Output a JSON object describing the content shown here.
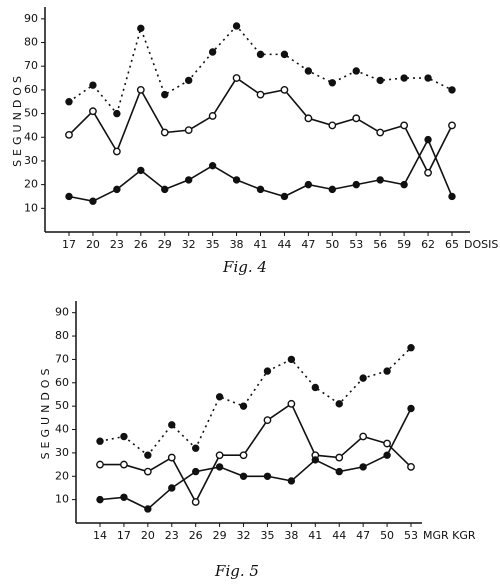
{
  "chart_data": [
    {
      "type": "line",
      "caption": "Fig. 4",
      "y_label": "SEGUNDOS",
      "x_label": "DOSIS",
      "categories": [
        "17",
        "20",
        "23",
        "26",
        "29",
        "32",
        "35",
        "38",
        "41",
        "44",
        "47",
        "50",
        "53",
        "56",
        "59",
        "62",
        "65"
      ],
      "ylim": [
        0,
        95
      ],
      "yticks": [
        10,
        20,
        30,
        40,
        50,
        60,
        70,
        80,
        90
      ],
      "series": [
        {
          "color": "#111111",
          "marker": "filled",
          "linestyle": "dotted",
          "values": [
            55,
            62,
            50,
            86,
            58,
            64,
            76,
            87,
            75,
            75,
            68,
            63,
            68,
            64,
            65,
            65,
            60
          ]
        },
        {
          "color": "#111111",
          "marker": "open",
          "linestyle": "solid",
          "values": [
            41,
            51,
            34,
            60,
            42,
            43,
            49,
            65,
            58,
            60,
            48,
            45,
            48,
            42,
            45,
            25,
            45
          ]
        },
        {
          "color": "#111111",
          "marker": "filled",
          "linestyle": "solid",
          "values": [
            15,
            13,
            18,
            26,
            18,
            22,
            28,
            22,
            18,
            15,
            20,
            18,
            20,
            22,
            20,
            39,
            15
          ]
        }
      ]
    },
    {
      "type": "line",
      "caption": "Fig. 5",
      "y_label": "SEGUNDOS",
      "x_label": "MGR KGR",
      "categories": [
        "14",
        "17",
        "20",
        "23",
        "26",
        "29",
        "32",
        "35",
        "38",
        "41",
        "44",
        "47",
        "50",
        "53"
      ],
      "ylim": [
        0,
        95
      ],
      "yticks": [
        10,
        20,
        30,
        40,
        50,
        60,
        70,
        80,
        90
      ],
      "series": [
        {
          "color": "#111111",
          "marker": "filled",
          "linestyle": "dotted",
          "values": [
            35,
            37,
            29,
            42,
            32,
            54,
            50,
            65,
            70,
            58,
            51,
            62,
            65,
            75
          ]
        },
        {
          "color": "#111111",
          "marker": "open",
          "linestyle": "solid",
          "values": [
            25,
            25,
            22,
            28,
            9,
            29,
            29,
            44,
            51,
            29,
            28,
            37,
            34,
            24
          ]
        },
        {
          "color": "#111111",
          "marker": "filled",
          "linestyle": "solid",
          "values": [
            10,
            11,
            6,
            15,
            22,
            24,
            20,
            20,
            18,
            27,
            22,
            24,
            29,
            49
          ]
        }
      ]
    }
  ]
}
